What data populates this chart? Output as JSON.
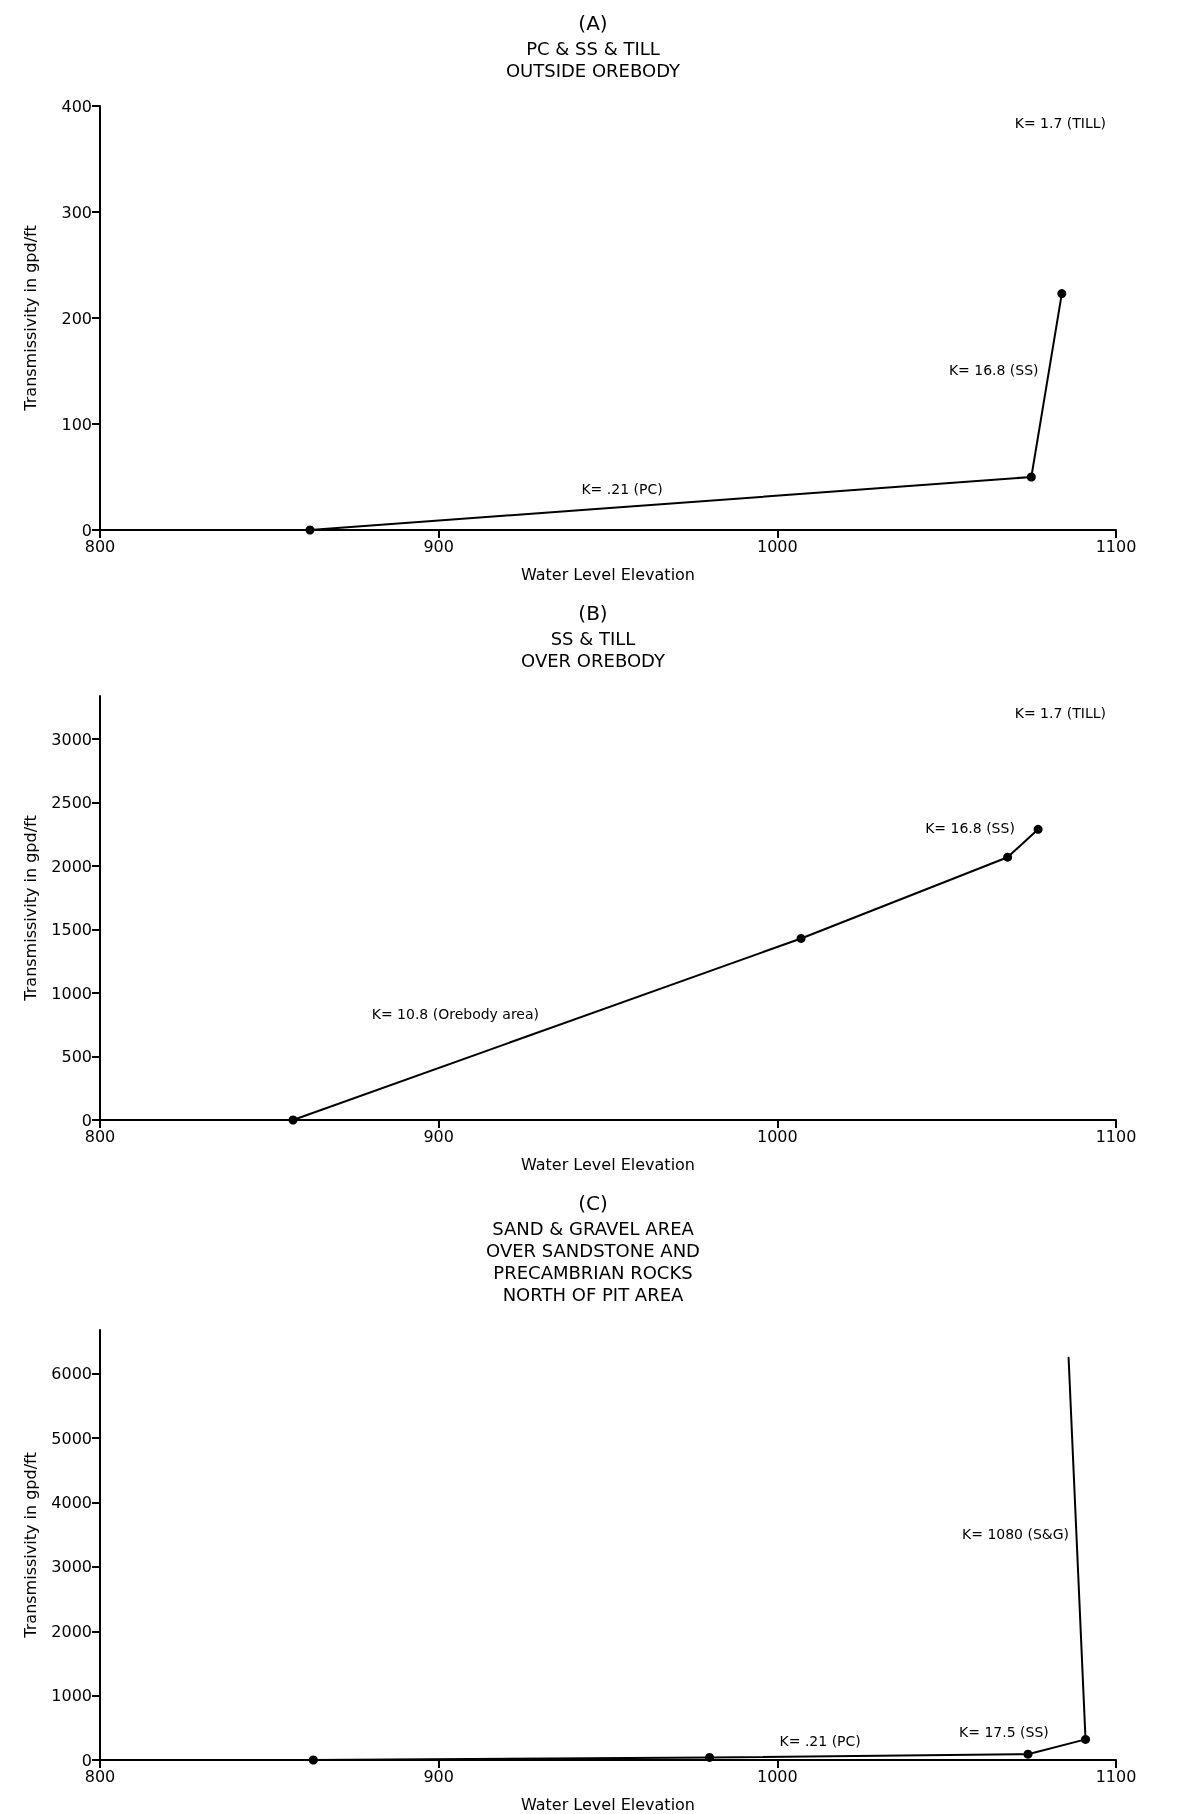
{
  "chart_data": [
    {
      "type": "line",
      "title": "(A)",
      "subtitle": "PC & SS & TILL\nOUTSIDE OREBODY",
      "xlabel": "Water Level Elevation",
      "ylabel": "Transmissivity in gpd/ft",
      "xlim": [
        800,
        1100
      ],
      "xticks": [
        800,
        900,
        1000,
        1100
      ],
      "ylim": [
        0,
        400
      ],
      "yticks": [
        0,
        100,
        200,
        300,
        400
      ],
      "grid": false,
      "marker": "circle",
      "line_style": "solid",
      "series": [
        {
          "color": "#000000",
          "x": [
            862,
            1075,
            1084
          ],
          "values": [
            0,
            50,
            223
          ]
        }
      ],
      "annotations": [
        "K= 1.7 (TILL)",
        {
          "text": "K= 16.8 (SS)",
          "x": 1079.5,
          "y": 136.5
        },
        {
          "text": "K= .21 (PC)",
          "x": 968.5,
          "y": 25
        }
      ]
    },
    {
      "type": "line",
      "title": "(B)",
      "subtitle": "SS & TILL\nOVER OREBODY",
      "xlabel": "Water Level Elevation",
      "ylabel": "Transmissivity in gpd/ft",
      "xlim": [
        800,
        1100
      ],
      "xticks": [
        800,
        900,
        1000,
        1100
      ],
      "ylim": [
        0,
        3340
      ],
      "yticks": [
        0,
        500,
        1000,
        1500,
        2000,
        2500,
        3000
      ],
      "grid": false,
      "marker": "circle",
      "line_style": "solid",
      "series": [
        {
          "color": "#000000",
          "x": [
            857,
            1007,
            1068,
            1077
          ],
          "values": [
            0,
            1430,
            2070,
            2290
          ]
        }
      ],
      "annotations": [
        "K= 1.7 (TILL)",
        {
          "text": "K= 16.8 (SS)",
          "x": 1072.5,
          "y": 2180
        },
        {
          "text": "K= 10.8 (Orebody area)",
          "x": 932,
          "y": 715
        }
      ]
    },
    {
      "type": "line",
      "title": "(C)",
      "subtitle": "SAND & GRAVEL AREA\nOVER SANDSTONE AND\nPRECAMBRIAN ROCKS\nNORTH OF PIT AREA",
      "xlabel": "Water Level Elevation",
      "ylabel": "Transmissivity in gpd/ft",
      "xlim": [
        800,
        1100
      ],
      "xticks": [
        800,
        900,
        1000,
        1100
      ],
      "ylim": [
        0,
        6680
      ],
      "yticks": [
        0,
        1000,
        2000,
        3000,
        4000,
        5000,
        6000
      ],
      "grid": false,
      "line_style": "solid",
      "series": [
        {
          "color": "#000000",
          "x": [
            863,
            980,
            1074,
            1091
          ],
          "values": [
            0,
            40,
            90,
            320
          ],
          "marker": "circle"
        },
        {
          "color": "#000000",
          "x": [
            1091,
            1086
          ],
          "values": [
            320,
            6250
          ],
          "marker": "none"
        }
      ],
      "annotations": [
        {
          "text": "K= 1080 (S&G)",
          "x": 1088.5,
          "y": 3285
        },
        {
          "text": "K= 17.5 (SS)",
          "x": 1082.5,
          "y": 205
        },
        {
          "text": "K= .21 (PC)",
          "x": 1027,
          "y": 65
        }
      ]
    }
  ]
}
